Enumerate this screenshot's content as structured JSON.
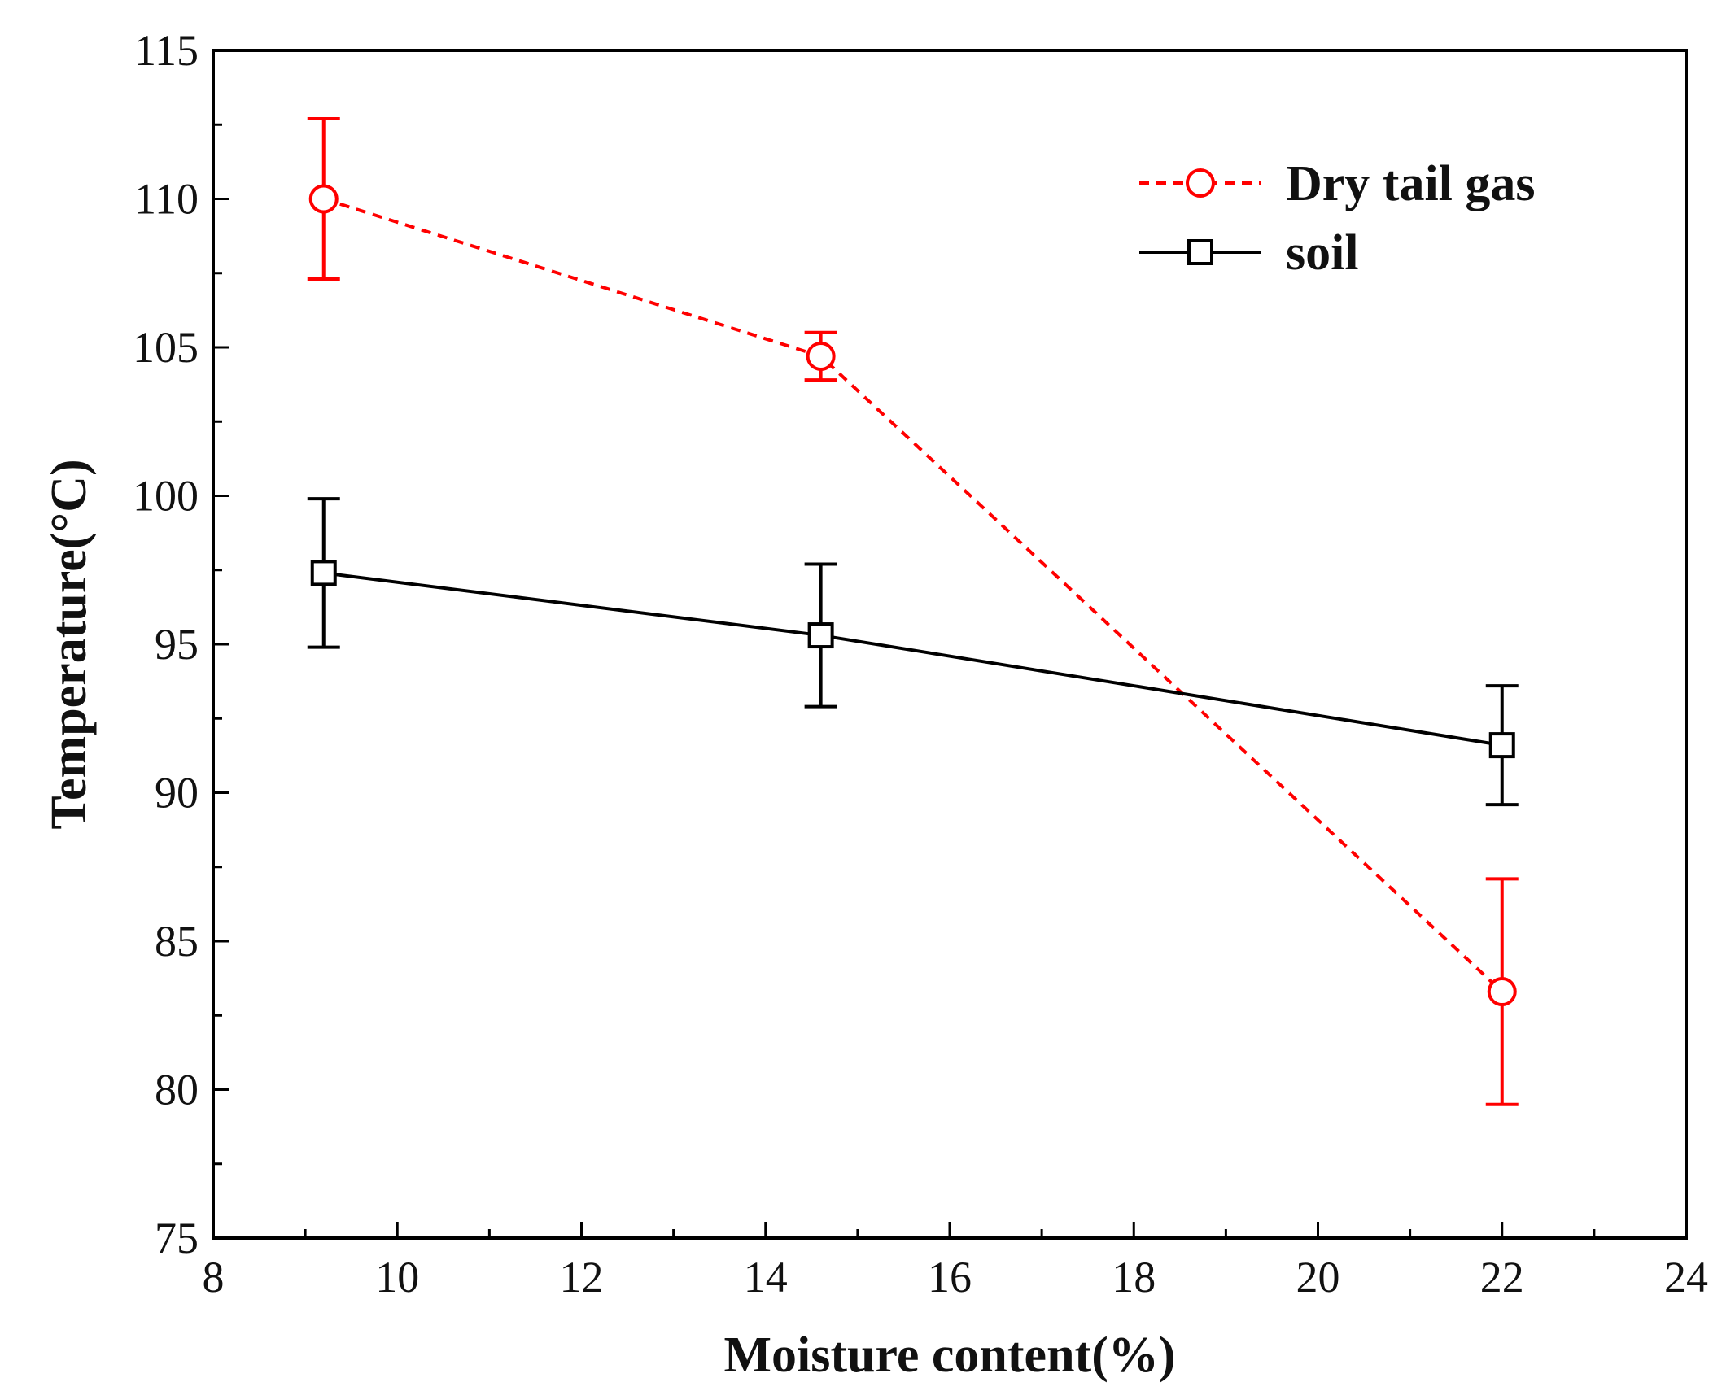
{
  "chart_data": {
    "type": "line",
    "title": "",
    "xlabel": "Moisture content(%)",
    "ylabel": "Temperature(°C)",
    "xlim": [
      8,
      24
    ],
    "ylim": [
      75,
      115
    ],
    "xticks": [
      8,
      10,
      12,
      14,
      16,
      18,
      20,
      22,
      24
    ],
    "yticks": [
      75,
      80,
      85,
      90,
      95,
      100,
      105,
      110,
      115
    ],
    "grid": false,
    "legend_position": "top-right",
    "series": [
      {
        "name": "Dry tail gas",
        "x": [
          9.2,
          14.6,
          22.0
        ],
        "y": [
          110.0,
          104.7,
          83.3
        ],
        "error": [
          2.7,
          0.8,
          3.8
        ],
        "color": "#ff0000",
        "line_style": "dashed",
        "marker": "circle"
      },
      {
        "name": "soil",
        "x": [
          9.2,
          14.6,
          22.0
        ],
        "y": [
          97.4,
          95.3,
          91.6
        ],
        "error": [
          2.5,
          2.4,
          2.0
        ],
        "color": "#000000",
        "line_style": "solid",
        "marker": "square"
      }
    ]
  }
}
